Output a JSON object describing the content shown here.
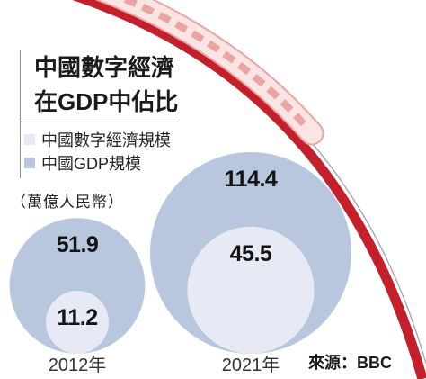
{
  "chart_data": {
    "type": "bubble",
    "title": "中國數字經濟\n在GDP中佔比",
    "unit": "（萬億人民幣）",
    "categories": [
      "2012年",
      "2021年"
    ],
    "series": [
      {
        "name": "中國數字經濟規模",
        "values": [
          11.2,
          45.5
        ],
        "color": "#e7eaf4"
      },
      {
        "name": "中國GDP規模",
        "values": [
          51.9,
          114.4
        ],
        "color": "#b9c7de"
      }
    ],
    "legend_position": "top-left",
    "source": "來源：BBC"
  },
  "colors": {
    "track": "#c4202c",
    "rail": "#a3a3a3",
    "train_body": "#fbe5e4",
    "train_outline": "#eaa5a3"
  }
}
